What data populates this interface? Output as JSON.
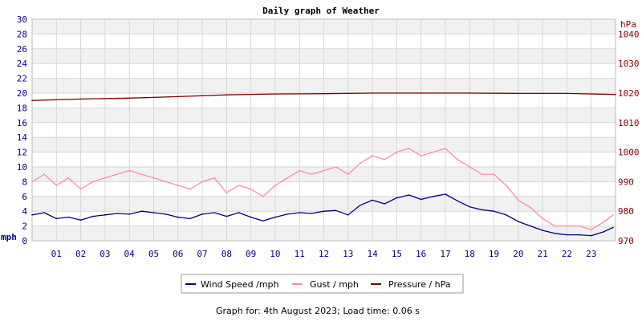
{
  "chart_data": {
    "type": "line",
    "title": "Daily graph of Weather",
    "left_unit": "mph",
    "right_unit": "hPa",
    "x_ticks": [
      "01",
      "02",
      "03",
      "04",
      "05",
      "06",
      "07",
      "08",
      "09",
      "10",
      "11",
      "12",
      "13",
      "14",
      "15",
      "16",
      "17",
      "18",
      "19",
      "20",
      "21",
      "22",
      "23"
    ],
    "x_range_hours": [
      0,
      24
    ],
    "y_left_range": [
      0,
      30
    ],
    "y_left_ticks": [
      0,
      2,
      4,
      6,
      8,
      10,
      12,
      14,
      16,
      18,
      20,
      22,
      24,
      26,
      28,
      30
    ],
    "y_right_range": [
      970,
      1045
    ],
    "y_right_ticks": [
      970,
      980,
      990,
      1000,
      1010,
      1020,
      1030,
      1040
    ],
    "grid": true,
    "legend_position": "bottom",
    "series": [
      {
        "name": "Wind Speed /mph",
        "color": "#000080",
        "axis": "left",
        "x_hours": [
          0,
          0.5,
          1,
          1.5,
          2,
          2.5,
          3,
          3.5,
          4,
          4.5,
          5,
          5.5,
          6,
          6.5,
          7,
          7.5,
          8,
          8.5,
          9,
          9.5,
          10,
          10.5,
          11,
          11.5,
          12,
          12.5,
          13,
          13.5,
          14,
          14.5,
          15,
          15.5,
          16,
          16.5,
          17,
          17.5,
          18,
          18.5,
          19,
          19.5,
          20,
          20.5,
          21,
          21.5,
          22,
          22.5,
          23,
          23.5,
          23.9
        ],
        "values": [
          3.5,
          3.8,
          3.0,
          3.2,
          2.8,
          3.3,
          3.5,
          3.7,
          3.6,
          4.0,
          3.8,
          3.6,
          3.2,
          3.0,
          3.6,
          3.8,
          3.3,
          3.8,
          3.2,
          2.7,
          3.2,
          3.6,
          3.8,
          3.7,
          4.0,
          4.1,
          3.5,
          4.8,
          5.5,
          5.0,
          5.8,
          6.2,
          5.6,
          6.0,
          6.3,
          5.4,
          4.6,
          4.2,
          4.0,
          3.5,
          2.6,
          2.0,
          1.4,
          1.0,
          0.8,
          0.8,
          0.7,
          1.2,
          1.8
        ]
      },
      {
        "name": "Gust / mph",
        "color": "#ff82ab",
        "axis": "left",
        "x_hours": [
          0,
          0.5,
          1,
          1.5,
          2,
          2.5,
          3,
          3.5,
          4,
          4.5,
          5,
          5.5,
          6,
          6.5,
          7,
          7.5,
          8,
          8.5,
          9,
          9.5,
          10,
          10.5,
          11,
          11.5,
          12,
          12.5,
          13,
          13.5,
          14,
          14.5,
          15,
          15.5,
          16,
          16.5,
          17,
          17.5,
          18,
          18.5,
          19,
          19.5,
          20,
          20.5,
          21,
          21.5,
          22,
          22.5,
          23,
          23.5,
          23.9
        ],
        "values": [
          8.0,
          9.0,
          7.5,
          8.5,
          7.0,
          8.0,
          8.5,
          9.0,
          9.5,
          9.0,
          8.5,
          8.0,
          7.5,
          7.0,
          8.0,
          8.5,
          6.5,
          7.5,
          7.0,
          6.0,
          7.5,
          8.5,
          9.5,
          9.0,
          9.5,
          10.0,
          9.0,
          10.5,
          11.5,
          11.0,
          12.0,
          12.5,
          11.5,
          12.0,
          12.5,
          11.0,
          10.0,
          9.0,
          9.0,
          7.5,
          5.5,
          4.5,
          3.0,
          2.0,
          2.0,
          2.0,
          1.5,
          2.5,
          3.5
        ]
      },
      {
        "name": "Pressure / hPa",
        "color": "#800000",
        "axis": "right",
        "x_hours": [
          0,
          2,
          4,
          6,
          8,
          10,
          12,
          14,
          16,
          18,
          20,
          22,
          24
        ],
        "values": [
          1017.5,
          1018.0,
          1018.3,
          1018.8,
          1019.4,
          1019.7,
          1019.8,
          1020.0,
          1020.0,
          1020.0,
          1019.9,
          1019.9,
          1019.5
        ]
      }
    ]
  },
  "footer": "Graph for: 4th August 2023; Load time: 0.06 s"
}
